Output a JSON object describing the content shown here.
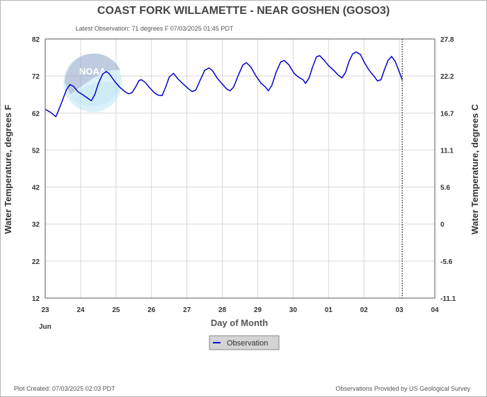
{
  "header": {
    "title": "COAST FORK WILLAMETTE - NEAR GOSHEN  (GOSO3)",
    "latest_observation": "Latest Observation: 71 degrees F 07/03/2025 01:45 PDT"
  },
  "footer": {
    "created": "Plot Created: 07/03/2025 02:03 PDT",
    "provider": "Observations Provided by US Geological Survey"
  },
  "logo": {
    "text": "NOAA"
  },
  "colors": {
    "series": "#0000cc",
    "grid": "#d6d6d6",
    "legend_bg": "#d4d4d4"
  },
  "chart_data": {
    "type": "line",
    "xlabel": "Day of Month",
    "ylabel_left": "Water Temperature, degrees F",
    "ylabel_right": "Water Temperature, degrees C",
    "month_label": "Jun",
    "x_tick_labels": [
      "23",
      "24",
      "25",
      "26",
      "27",
      "28",
      "29",
      "30",
      "01",
      "02",
      "03",
      "04"
    ],
    "y_left_ticks": [
      12,
      22,
      32,
      42,
      52,
      62,
      72,
      82
    ],
    "y_right_tick_labels": [
      "-11.1",
      "-5.6",
      "0",
      "5.6",
      "11.1",
      "16.7",
      "22.2",
      "27.8"
    ],
    "ylim": [
      12,
      82
    ],
    "xlim_days": [
      0,
      11
    ],
    "latest_marker_day": 10.08,
    "legend": [
      "Observation"
    ],
    "series": [
      {
        "name": "Observation",
        "points": [
          [
            0.0,
            63.0
          ],
          [
            0.15,
            62.2
          ],
          [
            0.3,
            61.0
          ],
          [
            0.45,
            64.5
          ],
          [
            0.6,
            68.3
          ],
          [
            0.7,
            69.7
          ],
          [
            0.8,
            69.2
          ],
          [
            0.92,
            67.8
          ],
          [
            1.05,
            67.0
          ],
          [
            1.2,
            66.0
          ],
          [
            1.3,
            65.3
          ],
          [
            1.4,
            67.0
          ],
          [
            1.5,
            70.0
          ],
          [
            1.62,
            72.5
          ],
          [
            1.72,
            73.2
          ],
          [
            1.8,
            72.7
          ],
          [
            1.95,
            70.7
          ],
          [
            2.1,
            69.0
          ],
          [
            2.25,
            67.8
          ],
          [
            2.35,
            67.2
          ],
          [
            2.45,
            67.5
          ],
          [
            2.55,
            69.0
          ],
          [
            2.65,
            70.8
          ],
          [
            2.72,
            71.0
          ],
          [
            2.82,
            70.3
          ],
          [
            2.95,
            68.8
          ],
          [
            3.1,
            67.3
          ],
          [
            3.2,
            66.8
          ],
          [
            3.3,
            66.7
          ],
          [
            3.4,
            69.0
          ],
          [
            3.5,
            71.7
          ],
          [
            3.62,
            72.7
          ],
          [
            3.75,
            71.2
          ],
          [
            3.9,
            69.8
          ],
          [
            4.05,
            68.5
          ],
          [
            4.15,
            67.8
          ],
          [
            4.25,
            68.2
          ],
          [
            4.38,
            71.0
          ],
          [
            4.5,
            73.5
          ],
          [
            4.62,
            74.2
          ],
          [
            4.72,
            73.5
          ],
          [
            4.85,
            71.5
          ],
          [
            5.0,
            69.8
          ],
          [
            5.12,
            68.5
          ],
          [
            5.22,
            68.0
          ],
          [
            5.32,
            69.0
          ],
          [
            5.45,
            72.2
          ],
          [
            5.58,
            75.0
          ],
          [
            5.68,
            75.6
          ],
          [
            5.8,
            74.5
          ],
          [
            5.95,
            72.0
          ],
          [
            6.1,
            70.0
          ],
          [
            6.22,
            69.0
          ],
          [
            6.3,
            68.0
          ],
          [
            6.4,
            69.5
          ],
          [
            6.52,
            73.0
          ],
          [
            6.65,
            75.8
          ],
          [
            6.75,
            76.2
          ],
          [
            6.88,
            75.0
          ],
          [
            7.02,
            72.8
          ],
          [
            7.15,
            71.7
          ],
          [
            7.28,
            71.0
          ],
          [
            7.35,
            70.0
          ],
          [
            7.45,
            71.5
          ],
          [
            7.55,
            74.5
          ],
          [
            7.66,
            77.2
          ],
          [
            7.75,
            77.5
          ],
          [
            7.88,
            76.2
          ],
          [
            8.0,
            74.8
          ],
          [
            8.15,
            73.5
          ],
          [
            8.28,
            72.2
          ],
          [
            8.38,
            71.5
          ],
          [
            8.48,
            73.0
          ],
          [
            8.58,
            76.0
          ],
          [
            8.68,
            78.0
          ],
          [
            8.78,
            78.5
          ],
          [
            8.9,
            77.8
          ],
          [
            9.02,
            75.5
          ],
          [
            9.15,
            73.5
          ],
          [
            9.28,
            72.0
          ],
          [
            9.38,
            70.7
          ],
          [
            9.48,
            71.0
          ],
          [
            9.58,
            73.8
          ],
          [
            9.68,
            76.2
          ],
          [
            9.78,
            77.3
          ],
          [
            9.88,
            76.0
          ],
          [
            9.98,
            73.5
          ],
          [
            10.08,
            71.0
          ]
        ]
      }
    ]
  }
}
